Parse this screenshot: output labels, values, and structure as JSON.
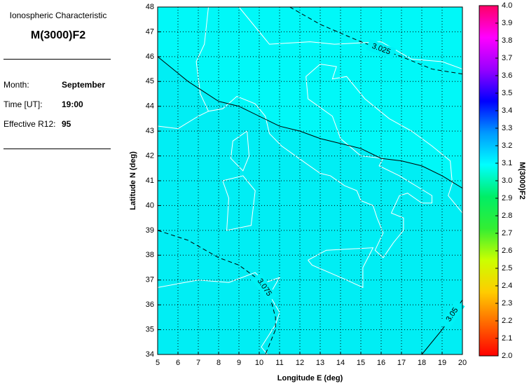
{
  "header": {
    "title": "Ionospheric Characteristic",
    "characteristic": "M(3000)F2"
  },
  "info": {
    "month_label": "Month:",
    "month": "September",
    "time_label": "Time [UT]:",
    "time": "19:00",
    "r12_label": "Effective R12:",
    "r12": 95
  },
  "chart_data": {
    "type": "contour",
    "xlabel": "Longitude E (deg)",
    "ylabel": "Latitude N (deg)",
    "xlim": [
      5,
      20
    ],
    "ylim": [
      34,
      48
    ],
    "xticks": [
      5,
      6,
      7,
      8,
      9,
      10,
      11,
      12,
      13,
      14,
      15,
      16,
      17,
      18,
      19,
      20
    ],
    "yticks": [
      34,
      35,
      36,
      37,
      38,
      39,
      40,
      41,
      42,
      43,
      44,
      45,
      46,
      47,
      48
    ],
    "grid": true,
    "contours": [
      {
        "level": 3.025,
        "style": "dashed",
        "labeled": true,
        "x": [
          11.5,
          13,
          15,
          17,
          18.5,
          20
        ],
        "y": [
          48,
          47.3,
          46.6,
          46.0,
          45.5,
          45.3
        ]
      },
      {
        "level": 3.05,
        "style": "solid",
        "labeled": false,
        "x": [
          5,
          6.5,
          8,
          9,
          11,
          12,
          13,
          14,
          15,
          16,
          17,
          18,
          19,
          20
        ],
        "y": [
          46,
          45,
          44.2,
          44.0,
          43.2,
          43.0,
          42.7,
          42.5,
          42.3,
          41.9,
          41.8,
          41.6,
          41.2,
          40.7
        ]
      },
      {
        "level": 3.075,
        "style": "dashed",
        "labeled": true,
        "x": [
          5,
          6.5,
          8,
          9,
          10,
          10.5,
          10.8,
          10.8,
          10.3
        ],
        "y": [
          39,
          38.6,
          37.9,
          37.6,
          37.0,
          36.4,
          35.5,
          35,
          34
        ]
      },
      {
        "level": 3.05,
        "style": "solid",
        "labeled": true,
        "x": [
          18,
          19,
          20
        ],
        "y": [
          34,
          35,
          36.2
        ]
      }
    ],
    "colorbar": {
      "label": "M(3000)F2",
      "lim": [
        2,
        4
      ],
      "ticks": [
        {
          "value": 2,
          "label": "2.0"
        },
        2.1,
        2.2,
        2.3,
        2.4,
        2.5,
        2.6,
        2.7,
        2.8,
        2.9,
        {
          "value": 3,
          "label": "3.0"
        },
        3.1,
        3.2,
        3.3,
        3.4,
        3.5,
        3.6,
        3.7,
        3.8,
        3.9,
        {
          "value": 4,
          "label": "4.0"
        }
      ],
      "colors": [
        "#ff0000",
        "#ff6600",
        "#ffcc00",
        "#ccff00",
        "#33ee33",
        "#00ee66",
        "#00ffff",
        "#0099ff",
        "#0000ff",
        "#9900ff",
        "#ff00ff",
        "#ff0066"
      ]
    }
  }
}
